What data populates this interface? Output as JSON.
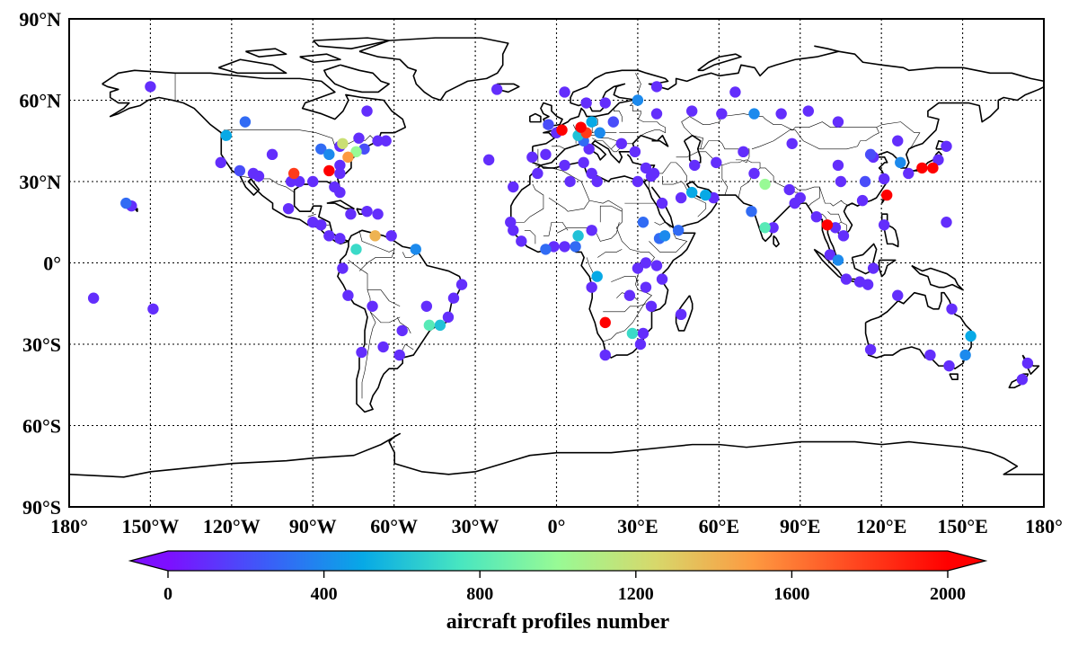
{
  "chart_data": {
    "type": "scatter",
    "projection": "equirectangular",
    "grid": true,
    "xlim": [
      -180,
      180
    ],
    "ylim": [
      -90,
      90
    ],
    "x_ticks": [
      {
        "v": -180,
        "label": "180°"
      },
      {
        "v": -150,
        "label": "150°W"
      },
      {
        "v": -120,
        "label": "120°W"
      },
      {
        "v": -90,
        "label": "90°W"
      },
      {
        "v": -60,
        "label": "60°W"
      },
      {
        "v": -30,
        "label": "30°W"
      },
      {
        "v": 0,
        "label": "0°"
      },
      {
        "v": 30,
        "label": "30°E"
      },
      {
        "v": 60,
        "label": "60°E"
      },
      {
        "v": 90,
        "label": "90°E"
      },
      {
        "v": 120,
        "label": "120°E"
      },
      {
        "v": 150,
        "label": "150°E"
      },
      {
        "v": 180,
        "label": "180°"
      }
    ],
    "y_ticks": [
      {
        "v": 90,
        "label": "90°N"
      },
      {
        "v": 60,
        "label": "60°N"
      },
      {
        "v": 30,
        "label": "30°N"
      },
      {
        "v": 0,
        "label": "0°"
      },
      {
        "v": -30,
        "label": "30°S"
      },
      {
        "v": -60,
        "label": "60°S"
      },
      {
        "v": -90,
        "label": "90°S"
      }
    ],
    "colorbar": {
      "label": "aircraft profiles number",
      "min": 0,
      "max": 2000,
      "extend": "both",
      "ticks": [
        0,
        400,
        800,
        1200,
        1600,
        2000
      ],
      "colormap": [
        "#7d0fff",
        "#3c5cf8",
        "#07a9e6",
        "#48e6c0",
        "#98fa95",
        "#d7d86b",
        "#fd9a41",
        "#ff4a21",
        "#ff0000"
      ]
    },
    "series": [
      {
        "points": [
          [
            -150,
            65,
            100
          ],
          [
            -115,
            52,
            300
          ],
          [
            -122,
            47,
            500
          ],
          [
            -124,
            37,
            100
          ],
          [
            -117,
            34,
            200
          ],
          [
            -112,
            33,
            100
          ],
          [
            -105,
            40,
            100
          ],
          [
            -97,
            33,
            1800
          ],
          [
            -95,
            30,
            100
          ],
          [
            -98,
            30,
            100
          ],
          [
            -90,
            30,
            100
          ],
          [
            -87,
            42,
            300
          ],
          [
            -84,
            34,
            2000
          ],
          [
            -84,
            40,
            400
          ],
          [
            -80,
            26,
            100
          ],
          [
            -82,
            28,
            100
          ],
          [
            -80,
            33,
            100
          ],
          [
            -80,
            36,
            100
          ],
          [
            -77,
            39,
            1500
          ],
          [
            -74,
            41,
            1000
          ],
          [
            -71,
            42,
            200
          ],
          [
            -73,
            46,
            100
          ],
          [
            -79,
            44,
            1200
          ],
          [
            -66,
            45,
            100
          ],
          [
            -63,
            45,
            100
          ],
          [
            -66,
            18,
            100
          ],
          [
            -70,
            19,
            100
          ],
          [
            -76,
            18,
            100
          ],
          [
            -90,
            15,
            100
          ],
          [
            -87,
            14,
            100
          ],
          [
            -99,
            20,
            100
          ],
          [
            -84,
            10,
            100
          ],
          [
            -80,
            9,
            100
          ],
          [
            -74,
            5,
            700
          ],
          [
            -67,
            10,
            1400
          ],
          [
            -61,
            10,
            100
          ],
          [
            -52,
            5,
            400
          ],
          [
            -79,
            -2,
            100
          ],
          [
            -77,
            -12,
            100
          ],
          [
            -68,
            -16,
            100
          ],
          [
            -57,
            -25,
            100
          ],
          [
            -47,
            -23,
            800
          ],
          [
            -43,
            -23,
            600
          ],
          [
            -58,
            -34,
            100
          ],
          [
            -64,
            -31,
            100
          ],
          [
            -72,
            -33,
            100
          ],
          [
            -35,
            -8,
            100
          ],
          [
            -38,
            -13,
            100
          ],
          [
            -159,
            22,
            300
          ],
          [
            -157,
            21,
            100
          ],
          [
            -171,
            -13,
            100
          ],
          [
            -149,
            -17,
            100
          ],
          [
            -16,
            28,
            100
          ],
          [
            -25,
            38,
            100
          ],
          [
            -9,
            39,
            100
          ],
          [
            -4,
            40,
            100
          ],
          [
            -3,
            51,
            200
          ],
          [
            0,
            48,
            100
          ],
          [
            2,
            49,
            2000
          ],
          [
            9,
            50,
            2000
          ],
          [
            11,
            48,
            1800
          ],
          [
            13,
            52,
            500
          ],
          [
            8,
            47,
            600
          ],
          [
            16,
            48,
            400
          ],
          [
            21,
            52,
            200
          ],
          [
            24,
            44,
            100
          ],
          [
            12,
            42,
            100
          ],
          [
            10,
            45,
            300
          ],
          [
            29,
            41,
            100
          ],
          [
            33,
            35,
            100
          ],
          [
            35,
            32,
            100
          ],
          [
            36,
            33,
            100
          ],
          [
            30,
            30,
            100
          ],
          [
            39,
            22,
            100
          ],
          [
            46,
            24,
            100
          ],
          [
            50,
            26,
            500
          ],
          [
            55,
            25,
            500
          ],
          [
            51,
            36,
            100
          ],
          [
            58,
            24,
            100
          ],
          [
            59,
            37,
            100
          ],
          [
            69,
            41,
            100
          ],
          [
            73,
            33,
            100
          ],
          [
            77,
            29,
            1000
          ],
          [
            72,
            19,
            300
          ],
          [
            77,
            13,
            800
          ],
          [
            80,
            13,
            100
          ],
          [
            88,
            22,
            100
          ],
          [
            86,
            27,
            100
          ],
          [
            90,
            24,
            100
          ],
          [
            96,
            17,
            100
          ],
          [
            100,
            14,
            2000
          ],
          [
            104,
            1,
            400
          ],
          [
            103,
            13,
            100
          ],
          [
            106,
            10,
            100
          ],
          [
            101,
            3,
            100
          ],
          [
            107,
            -6,
            100
          ],
          [
            112,
            -7,
            100
          ],
          [
            115,
            -8,
            100
          ],
          [
            117,
            -2,
            100
          ],
          [
            121,
            14,
            100
          ],
          [
            122,
            25,
            2000
          ],
          [
            121,
            31,
            100
          ],
          [
            113,
            23,
            100
          ],
          [
            114,
            30,
            200
          ],
          [
            117,
            39,
            100
          ],
          [
            116,
            40,
            200
          ],
          [
            127,
            37,
            400
          ],
          [
            130,
            33,
            100
          ],
          [
            135,
            35,
            2000
          ],
          [
            139,
            35,
            2000
          ],
          [
            141,
            38,
            100
          ],
          [
            144,
            43,
            100
          ],
          [
            126,
            45,
            100
          ],
          [
            87,
            44,
            100
          ],
          [
            104,
            36,
            100
          ],
          [
            105,
            30,
            100
          ],
          [
            126,
            -12,
            100
          ],
          [
            116,
            -32,
            100
          ],
          [
            138,
            -34,
            100
          ],
          [
            145,
            -38,
            100
          ],
          [
            151,
            -34,
            400
          ],
          [
            153,
            -27,
            500
          ],
          [
            146,
            -17,
            100
          ],
          [
            174,
            -37,
            100
          ],
          [
            172,
            -43,
            100
          ],
          [
            144,
            15,
            100
          ],
          [
            18,
            -22,
            2000
          ],
          [
            28,
            -26,
            700
          ],
          [
            32,
            -26,
            100
          ],
          [
            18,
            -34,
            100
          ],
          [
            31,
            -30,
            100
          ],
          [
            35,
            -16,
            100
          ],
          [
            33,
            -9,
            100
          ],
          [
            39,
            -6,
            100
          ],
          [
            37,
            -1,
            100
          ],
          [
            33,
            0,
            100
          ],
          [
            30,
            -2,
            100
          ],
          [
            46,
            -19,
            100
          ],
          [
            38,
            9,
            300
          ],
          [
            45,
            12,
            300
          ],
          [
            32,
            15,
            300
          ],
          [
            40,
            10,
            400
          ],
          [
            7,
            6,
            300
          ],
          [
            3,
            6,
            100
          ],
          [
            -1,
            6,
            100
          ],
          [
            -4,
            5,
            300
          ],
          [
            -13,
            8,
            100
          ],
          [
            -17,
            15,
            100
          ],
          [
            -16,
            12,
            100
          ],
          [
            13,
            12,
            100
          ],
          [
            8,
            10,
            600
          ],
          [
            15,
            -5,
            500
          ],
          [
            13,
            -9,
            100
          ],
          [
            27,
            -12,
            100
          ],
          [
            3,
            36,
            100
          ],
          [
            -7,
            33,
            100
          ],
          [
            10,
            37,
            100
          ],
          [
            13,
            33,
            100
          ],
          [
            15,
            30,
            100
          ],
          [
            5,
            30,
            100
          ],
          [
            37,
            55,
            100
          ],
          [
            30,
            60,
            400
          ],
          [
            50,
            56,
            100
          ],
          [
            61,
            55,
            100
          ],
          [
            73,
            55,
            400
          ],
          [
            83,
            55,
            100
          ],
          [
            66,
            63,
            100
          ],
          [
            37,
            65,
            100
          ],
          [
            93,
            56,
            100
          ],
          [
            104,
            52,
            100
          ],
          [
            -22,
            64,
            100
          ],
          [
            3,
            63,
            100
          ],
          [
            11,
            59,
            100
          ],
          [
            18,
            59,
            100
          ],
          [
            -70,
            56,
            100
          ],
          [
            -80,
            43,
            100
          ],
          [
            -110,
            32,
            100
          ],
          [
            -40,
            -20,
            100
          ],
          [
            -48,
            -16,
            100
          ]
        ]
      }
    ]
  }
}
